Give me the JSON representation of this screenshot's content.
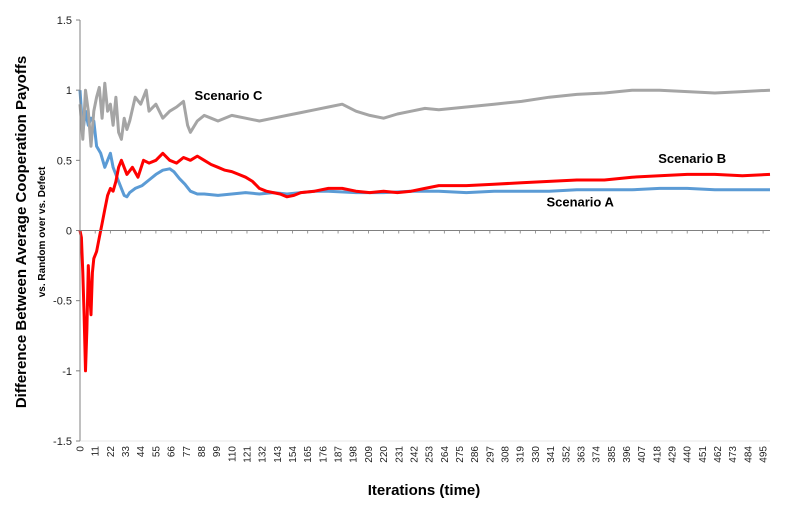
{
  "chart_data": {
    "type": "line",
    "title": "",
    "xlabel": "Iterations (time)",
    "ylabel": "Difference Between Average Cooperation Payoffs",
    "ylabel_sub": "vs. Random over vs. Defect",
    "xlim": [
      0,
      500
    ],
    "ylim": [
      -1.5,
      1.5
    ],
    "yticks": [
      "1.5",
      "1",
      "0.5",
      "0",
      "-0.5",
      "-1",
      "-1.5"
    ],
    "ytick_values": [
      1.5,
      1,
      0.5,
      0,
      -0.5,
      -1,
      -1.5
    ],
    "xtick_step": 11,
    "xtick_max": 495,
    "grid": false,
    "legend": "none",
    "series": [
      {
        "name": "Scenario A",
        "color": "#5b9bd5",
        "x": [
          0,
          2,
          4,
          6,
          8,
          10,
          12,
          15,
          18,
          20,
          22,
          24,
          26,
          28,
          30,
          32,
          34,
          36,
          40,
          45,
          50,
          55,
          60,
          65,
          68,
          72,
          76,
          80,
          85,
          90,
          100,
          110,
          120,
          130,
          140,
          150,
          160,
          170,
          180,
          200,
          220,
          240,
          260,
          280,
          300,
          320,
          340,
          360,
          380,
          400,
          420,
          440,
          460,
          480,
          500
        ],
        "y": [
          1.0,
          0.7,
          0.85,
          0.75,
          0.8,
          0.78,
          0.6,
          0.55,
          0.45,
          0.5,
          0.55,
          0.45,
          0.4,
          0.35,
          0.3,
          0.25,
          0.24,
          0.27,
          0.3,
          0.32,
          0.36,
          0.4,
          0.43,
          0.44,
          0.42,
          0.37,
          0.33,
          0.28,
          0.26,
          0.26,
          0.25,
          0.26,
          0.27,
          0.26,
          0.27,
          0.26,
          0.27,
          0.28,
          0.28,
          0.27,
          0.27,
          0.28,
          0.28,
          0.27,
          0.28,
          0.28,
          0.28,
          0.29,
          0.29,
          0.29,
          0.3,
          0.3,
          0.29,
          0.29,
          0.29
        ]
      },
      {
        "name": "Scenario B",
        "color": "#ff0000",
        "x": [
          0,
          1,
          2,
          3,
          4,
          5,
          6,
          7,
          8,
          9,
          10,
          12,
          14,
          16,
          18,
          20,
          22,
          24,
          26,
          28,
          30,
          34,
          38,
          42,
          46,
          50,
          55,
          60,
          65,
          70,
          75,
          80,
          85,
          90,
          95,
          100,
          105,
          110,
          115,
          120,
          125,
          130,
          135,
          140,
          145,
          150,
          155,
          160,
          170,
          180,
          190,
          200,
          210,
          220,
          230,
          240,
          250,
          260,
          280,
          300,
          320,
          340,
          360,
          380,
          400,
          420,
          440,
          460,
          480,
          500
        ],
        "y": [
          0.0,
          -0.05,
          -0.3,
          -0.6,
          -1.0,
          -0.7,
          -0.25,
          -0.45,
          -0.6,
          -0.3,
          -0.2,
          -0.15,
          -0.05,
          0.05,
          0.15,
          0.25,
          0.3,
          0.28,
          0.35,
          0.45,
          0.5,
          0.4,
          0.45,
          0.38,
          0.5,
          0.48,
          0.5,
          0.55,
          0.5,
          0.48,
          0.52,
          0.5,
          0.53,
          0.5,
          0.47,
          0.45,
          0.43,
          0.42,
          0.4,
          0.38,
          0.35,
          0.3,
          0.28,
          0.27,
          0.26,
          0.24,
          0.25,
          0.27,
          0.28,
          0.3,
          0.3,
          0.28,
          0.27,
          0.28,
          0.27,
          0.28,
          0.3,
          0.32,
          0.32,
          0.33,
          0.34,
          0.35,
          0.36,
          0.36,
          0.38,
          0.39,
          0.4,
          0.4,
          0.39,
          0.4
        ]
      },
      {
        "name": "Scenario C",
        "color": "#a5a5a5",
        "x": [
          0,
          2,
          4,
          6,
          8,
          10,
          12,
          14,
          16,
          18,
          20,
          22,
          24,
          26,
          28,
          30,
          32,
          34,
          36,
          40,
          44,
          48,
          50,
          55,
          60,
          65,
          70,
          75,
          78,
          80,
          85,
          90,
          95,
          100,
          110,
          120,
          130,
          140,
          150,
          160,
          170,
          180,
          190,
          200,
          210,
          220,
          230,
          240,
          250,
          260,
          280,
          300,
          320,
          340,
          360,
          380,
          400,
          420,
          440,
          460,
          480,
          500
        ],
        "y": [
          0.9,
          0.65,
          1.0,
          0.85,
          0.6,
          0.85,
          0.95,
          1.02,
          0.8,
          1.05,
          0.85,
          0.9,
          0.75,
          0.95,
          0.7,
          0.65,
          0.8,
          0.72,
          0.78,
          0.95,
          0.9,
          1.0,
          0.85,
          0.9,
          0.8,
          0.85,
          0.88,
          0.92,
          0.75,
          0.7,
          0.78,
          0.82,
          0.8,
          0.78,
          0.82,
          0.8,
          0.78,
          0.8,
          0.82,
          0.84,
          0.86,
          0.88,
          0.9,
          0.85,
          0.82,
          0.8,
          0.83,
          0.85,
          0.87,
          0.86,
          0.88,
          0.9,
          0.92,
          0.95,
          0.97,
          0.98,
          1.0,
          1.0,
          0.99,
          0.98,
          0.99,
          1.0
        ]
      }
    ],
    "annotations": [
      {
        "text": "Scenario C",
        "x": 83,
        "y": 0.93
      },
      {
        "text": "Scenario B",
        "x": 419,
        "y": 0.48
      },
      {
        "text": "Scenario A",
        "x": 338,
        "y": 0.17
      }
    ]
  }
}
